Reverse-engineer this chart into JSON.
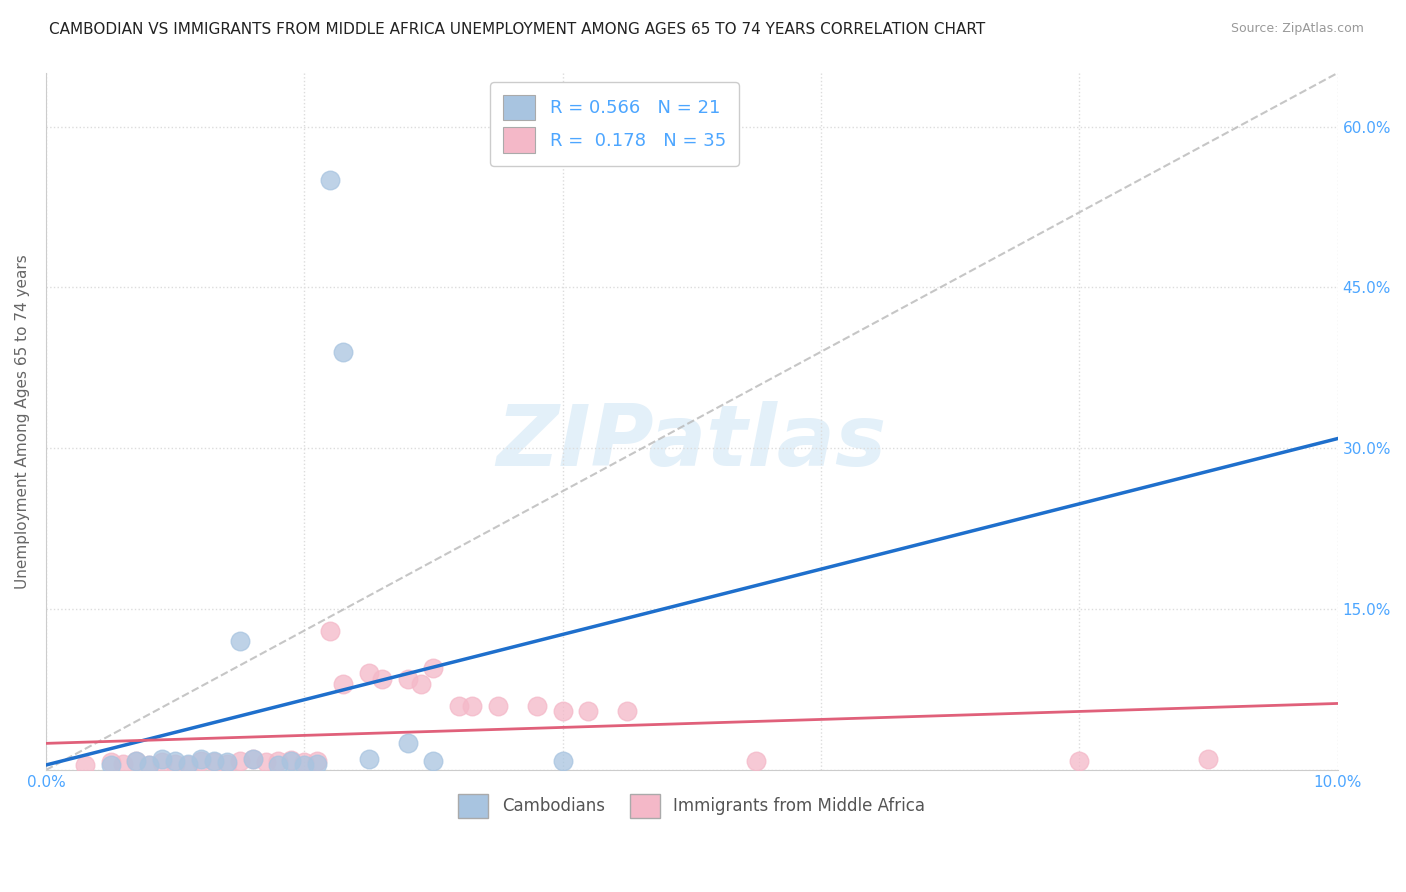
{
  "title": "CAMBODIAN VS IMMIGRANTS FROM MIDDLE AFRICA UNEMPLOYMENT AMONG AGES 65 TO 74 YEARS CORRELATION CHART",
  "source": "Source: ZipAtlas.com",
  "ylabel": "Unemployment Among Ages 65 to 74 years",
  "xlim": [
    0.0,
    0.1
  ],
  "ylim": [
    0.0,
    0.65
  ],
  "xticks": [
    0.0,
    0.02,
    0.04,
    0.06,
    0.08,
    0.1
  ],
  "xtick_labels": [
    "0.0%",
    "",
    "",
    "",
    "",
    "10.0%"
  ],
  "yticks": [
    0.0,
    0.15,
    0.3,
    0.45,
    0.6
  ],
  "ytick_labels_left": [
    "",
    "",
    "",
    "",
    ""
  ],
  "ytick_labels_right": [
    "",
    "15.0%",
    "30.0%",
    "45.0%",
    "60.0%"
  ],
  "cambodian_color": "#a8c4e0",
  "cambodian_line_color": "#1e6fcc",
  "middle_africa_color": "#f4b8c8",
  "middle_africa_line_color": "#e0607a",
  "diagonal_color": "#b8b8b8",
  "background_color": "#ffffff",
  "grid_color": "#dcdcdc",
  "watermark": "ZIPatlas",
  "cambodian_points": [
    [
      0.005,
      0.005
    ],
    [
      0.007,
      0.008
    ],
    [
      0.008,
      0.005
    ],
    [
      0.009,
      0.01
    ],
    [
      0.01,
      0.008
    ],
    [
      0.011,
      0.006
    ],
    [
      0.012,
      0.01
    ],
    [
      0.013,
      0.008
    ],
    [
      0.014,
      0.007
    ],
    [
      0.015,
      0.12
    ],
    [
      0.016,
      0.01
    ],
    [
      0.018,
      0.005
    ],
    [
      0.019,
      0.008
    ],
    [
      0.02,
      0.005
    ],
    [
      0.021,
      0.006
    ],
    [
      0.022,
      0.55
    ],
    [
      0.023,
      0.39
    ],
    [
      0.025,
      0.01
    ],
    [
      0.028,
      0.025
    ],
    [
      0.03,
      0.008
    ],
    [
      0.04,
      0.008
    ]
  ],
  "middle_africa_points": [
    [
      0.003,
      0.005
    ],
    [
      0.005,
      0.007
    ],
    [
      0.006,
      0.006
    ],
    [
      0.007,
      0.008
    ],
    [
      0.008,
      0.005
    ],
    [
      0.009,
      0.007
    ],
    [
      0.01,
      0.006
    ],
    [
      0.011,
      0.005
    ],
    [
      0.012,
      0.008
    ],
    [
      0.013,
      0.007
    ],
    [
      0.014,
      0.006
    ],
    [
      0.015,
      0.008
    ],
    [
      0.016,
      0.01
    ],
    [
      0.017,
      0.007
    ],
    [
      0.018,
      0.008
    ],
    [
      0.019,
      0.009
    ],
    [
      0.02,
      0.007
    ],
    [
      0.021,
      0.008
    ],
    [
      0.022,
      0.13
    ],
    [
      0.023,
      0.08
    ],
    [
      0.025,
      0.09
    ],
    [
      0.026,
      0.085
    ],
    [
      0.028,
      0.085
    ],
    [
      0.029,
      0.08
    ],
    [
      0.03,
      0.095
    ],
    [
      0.032,
      0.06
    ],
    [
      0.033,
      0.06
    ],
    [
      0.035,
      0.06
    ],
    [
      0.038,
      0.06
    ],
    [
      0.04,
      0.055
    ],
    [
      0.042,
      0.055
    ],
    [
      0.045,
      0.055
    ],
    [
      0.055,
      0.008
    ],
    [
      0.08,
      0.008
    ],
    [
      0.09,
      0.01
    ]
  ],
  "title_fontsize": 11,
  "axis_label_fontsize": 11,
  "tick_fontsize": 11,
  "legend_fontsize": 13
}
